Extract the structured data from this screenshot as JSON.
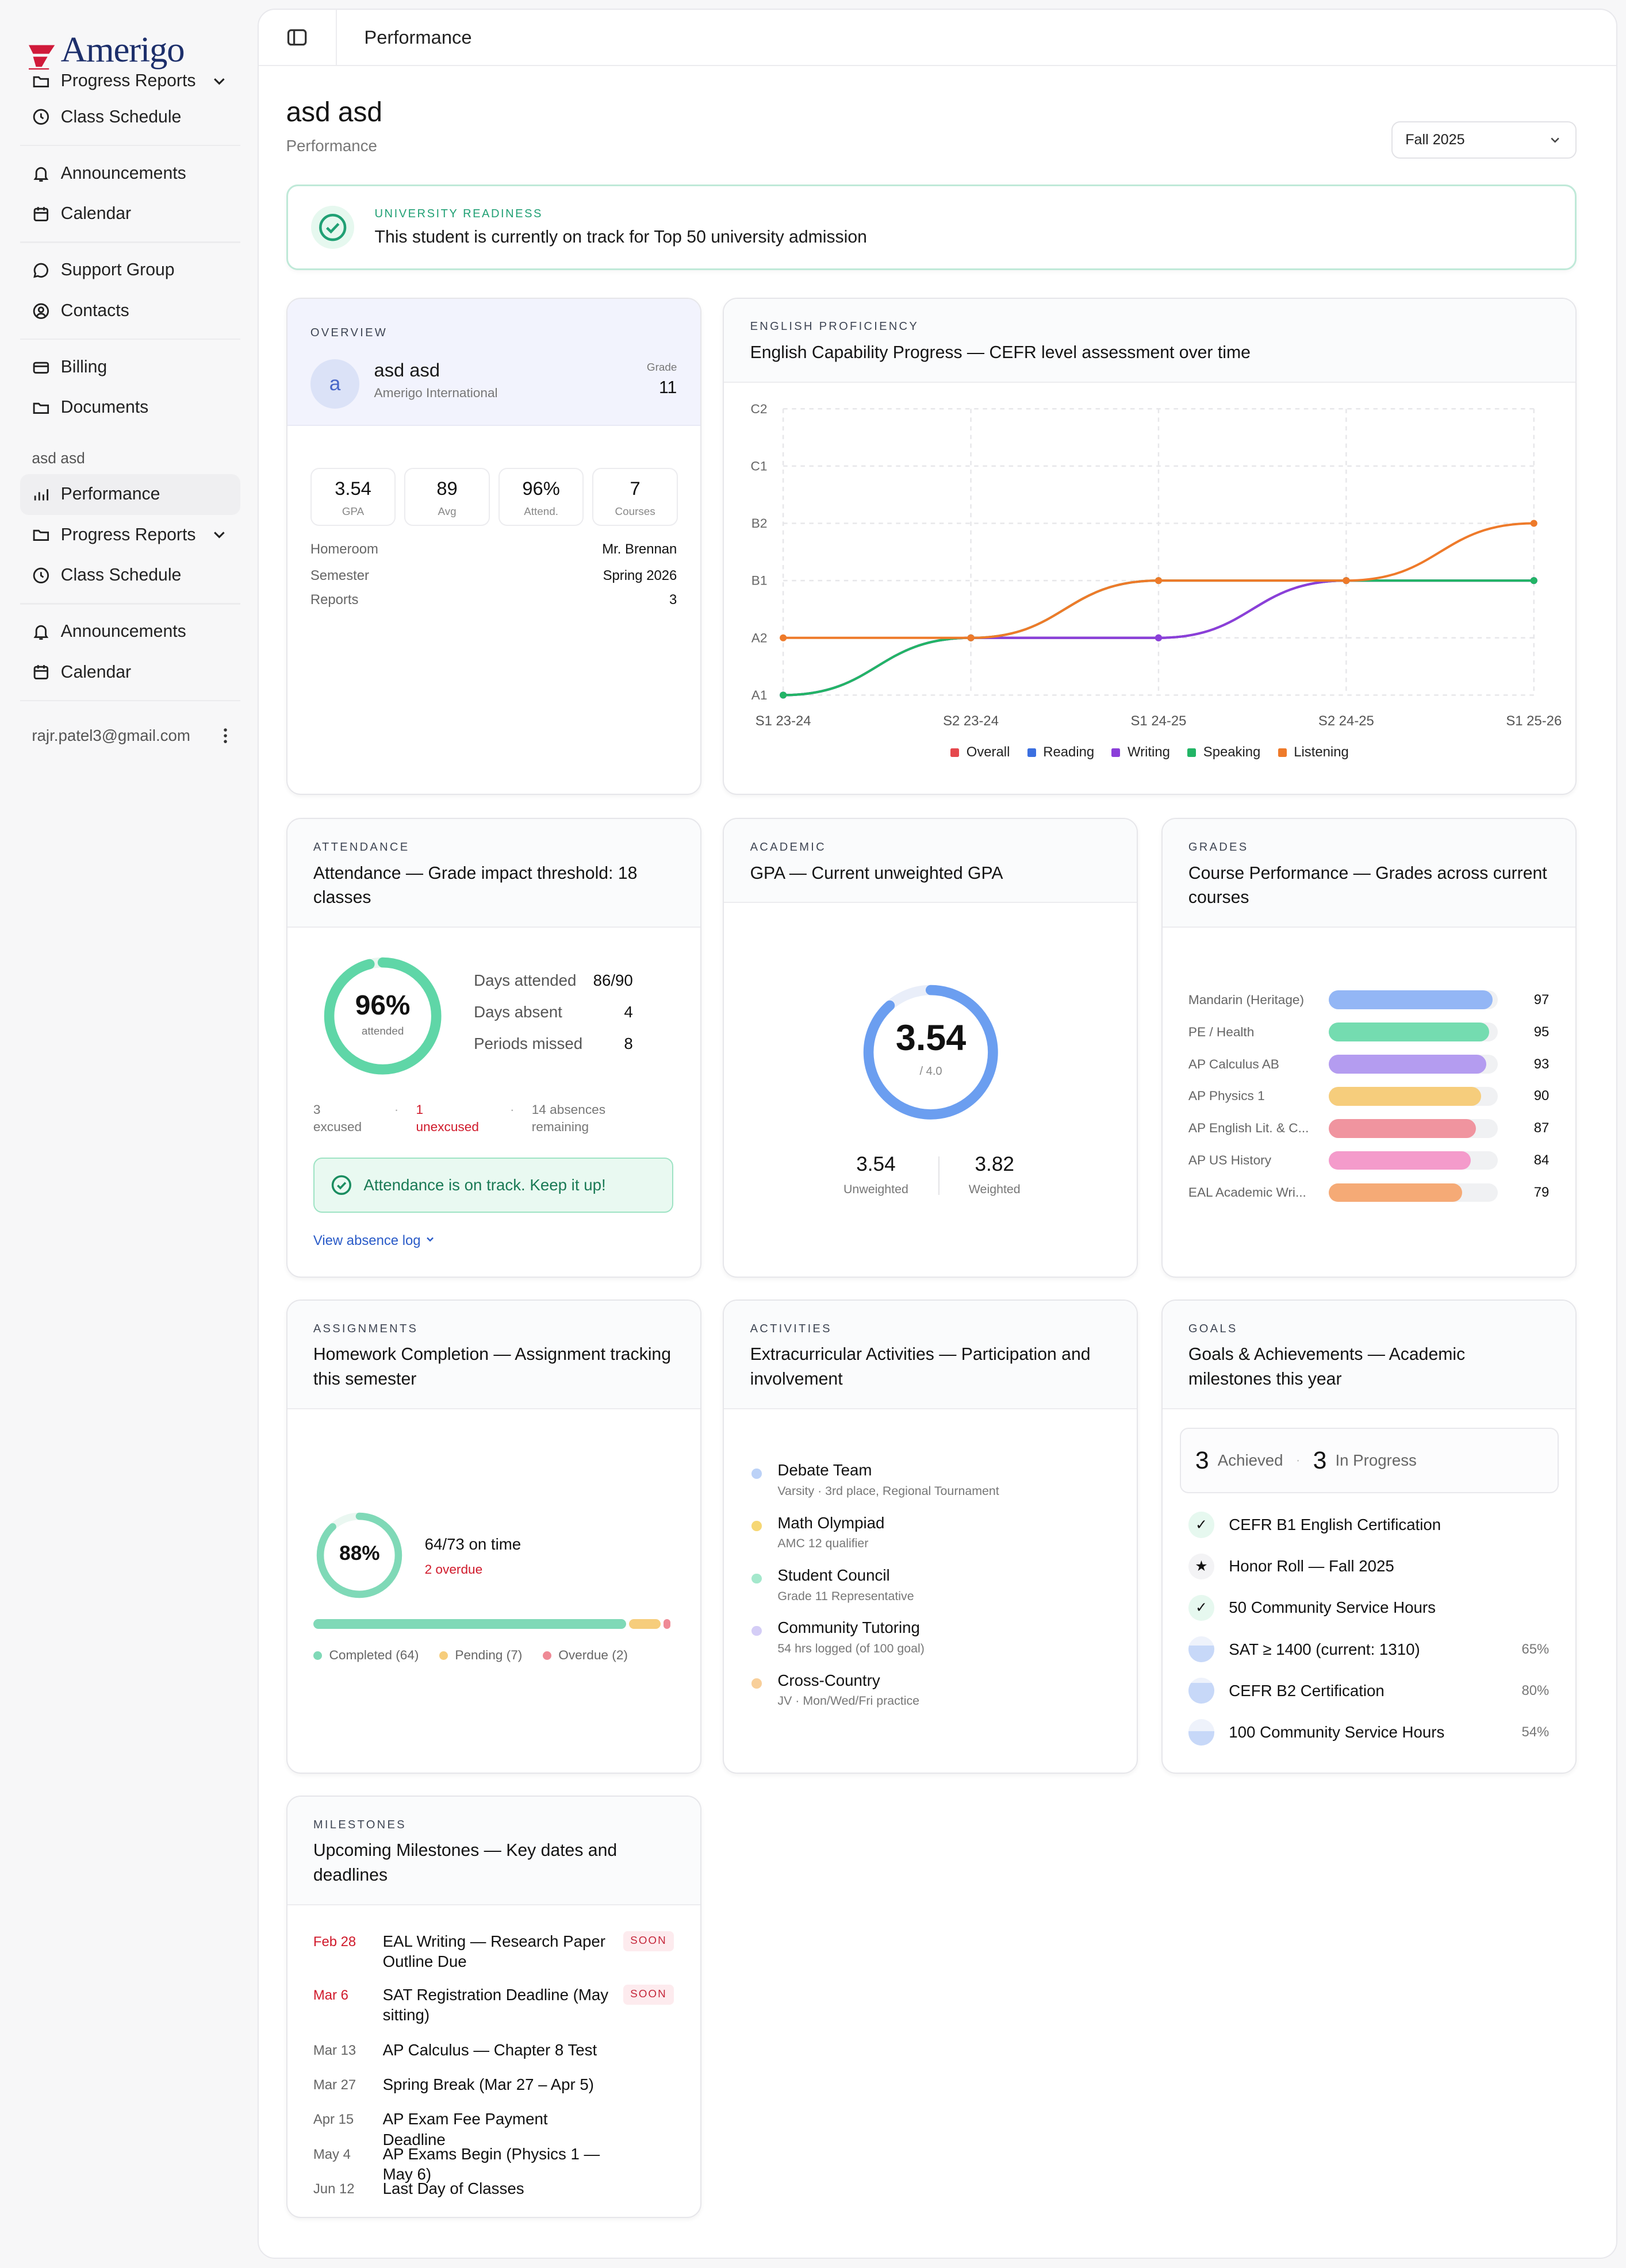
{
  "sidebar": {
    "brand": "Amerigo",
    "top_items": [
      {
        "label": "Progress Reports",
        "icon": "folder-icon"
      },
      {
        "label": "Class Schedule",
        "icon": "clock-icon"
      }
    ],
    "group1": [
      {
        "label": "Announcements",
        "icon": "bell-icon"
      },
      {
        "label": "Calendar",
        "icon": "calendar-icon"
      }
    ],
    "group2": [
      {
        "label": "Support Group",
        "icon": "chat-icon"
      },
      {
        "label": "Contacts",
        "icon": "contact-icon"
      }
    ],
    "group3": [
      {
        "label": "Billing",
        "icon": "billing-icon"
      },
      {
        "label": "Documents",
        "icon": "folder-icon"
      }
    ],
    "student_section": "asd asd",
    "student_items": [
      {
        "label": "Performance",
        "icon": "chart-icon"
      },
      {
        "label": "Progress Reports",
        "icon": "folder-icon"
      },
      {
        "label": "Class Schedule",
        "icon": "clock-icon"
      }
    ],
    "group4": [
      {
        "label": "Announcements",
        "icon": "bell-icon"
      },
      {
        "label": "Calendar",
        "icon": "calendar-icon"
      }
    ],
    "user_email": "rajr.patel3@gmail.com"
  },
  "topbar": {
    "title": "Performance"
  },
  "page": {
    "title": "asd asd",
    "subtitle": "Performance",
    "term": "Fall 2025"
  },
  "banner": {
    "eyebrow": "UNIVERSITY READINESS",
    "message": "This student is currently on track for Top 50 university admission"
  },
  "overview": {
    "eyebrow": "OVERVIEW",
    "avatar": "a",
    "name": "asd asd",
    "school": "Amerigo International",
    "grade_label": "Grade",
    "grade": "11",
    "stats": [
      {
        "value": "3.54",
        "label": "GPA"
      },
      {
        "value": "89",
        "label": "Avg"
      },
      {
        "value": "96%",
        "label": "Attend."
      },
      {
        "value": "7",
        "label": "Courses"
      }
    ],
    "details": [
      {
        "key": "Homeroom",
        "value": "Mr. Brennan"
      },
      {
        "key": "Semester",
        "value": "Spring 2026"
      },
      {
        "key": "Reports",
        "value": "3"
      }
    ]
  },
  "english": {
    "eyebrow": "ENGLISH PROFICIENCY",
    "title": "English Capability Progress — CEFR level assessment over time",
    "chart_data": {
      "type": "line",
      "x": [
        "S1 23-24",
        "S2 23-24",
        "S1 24-25",
        "S2 24-25",
        "S1 25-26"
      ],
      "y_levels": [
        "A1",
        "A2",
        "B1",
        "B2",
        "C1",
        "C2"
      ],
      "series": [
        {
          "name": "Overall",
          "color": "#e5484d",
          "values": [
            "A1",
            "A2",
            "A2",
            "B1",
            "B1"
          ]
        },
        {
          "name": "Reading",
          "color": "#3b6fe0",
          "values": [
            "A1",
            "A2",
            "A2",
            "B1",
            "B1"
          ]
        },
        {
          "name": "Writing",
          "color": "#8b3fd9",
          "values": [
            "A1",
            "A2",
            "A2",
            "B1",
            "B1"
          ]
        },
        {
          "name": "Speaking",
          "color": "#22b566",
          "values": [
            "A1",
            "A2",
            "B1",
            "B1",
            "B1"
          ]
        },
        {
          "name": "Listening",
          "color": "#ee7a2a",
          "values": [
            "A2",
            "A2",
            "B1",
            "B1",
            "B2"
          ]
        }
      ],
      "grid": true,
      "legend": "bottom"
    }
  },
  "attendance": {
    "eyebrow": "ATTENDANCE",
    "title": "Attendance — Grade impact threshold: 18 classes",
    "percent": "96%",
    "percent_value": 96,
    "percent_label": "attended",
    "stats": [
      {
        "key": "Days attended",
        "value": "86/90"
      },
      {
        "key": "Days absent",
        "value": "4"
      },
      {
        "key": "Periods missed",
        "value": "8"
      }
    ],
    "excused_n": "3",
    "excused_l": "excused",
    "unexcused_n": "1",
    "unexcused_l": "unexcused",
    "remaining_n": "14 absences",
    "remaining_l": "remaining",
    "ok_message": "Attendance is on track. Keep it up!",
    "link": "View absence log"
  },
  "gpa": {
    "eyebrow": "ACADEMIC",
    "title": "GPA — Current unweighted GPA",
    "value": "3.54",
    "value_num": 3.54,
    "scale": "/ 4.0",
    "unweighted": "3.54",
    "unweighted_label": "Unweighted",
    "weighted": "3.82",
    "weighted_label": "Weighted"
  },
  "grades": {
    "eyebrow": "GRADES",
    "title": "Course Performance — Grades across current courses",
    "chart_data": {
      "type": "bar",
      "categories": [
        "Mandarin (Heritage)",
        "PE / Health",
        "AP Calculus AB",
        "AP Physics 1",
        "AP English Lit. & C...",
        "AP US History",
        "EAL Academic Wri..."
      ],
      "values": [
        97,
        95,
        93,
        90,
        87,
        84,
        79
      ],
      "colors": [
        "#93b6f5",
        "#74dcb0",
        "#b49cf0",
        "#f6cd7c",
        "#f0949f",
        "#f49bcb",
        "#f5aa76"
      ],
      "ylim": [
        0,
        100
      ]
    }
  },
  "homework": {
    "eyebrow": "ASSIGNMENTS",
    "title": "Homework Completion — Assignment tracking this semester",
    "percent": "88%",
    "percent_value": 88,
    "on_time": "64/73 on time",
    "overdue": "2 overdue",
    "segments": [
      {
        "label": "Completed (64)",
        "count": 64,
        "color": "#7fd9b7"
      },
      {
        "label": "Pending (7)",
        "count": 7,
        "color": "#f6cd7c"
      },
      {
        "label": "Overdue (2)",
        "count": 2,
        "color": "#ef8a96"
      }
    ]
  },
  "activities": {
    "eyebrow": "ACTIVITIES",
    "title": "Extracurricular Activities — Participation and involvement",
    "items": [
      {
        "title": "Debate Team",
        "sub": "Varsity · 3rd place, Regional Tournament",
        "color": "#bcd2f7"
      },
      {
        "title": "Math Olympiad",
        "sub": "AMC 12 qualifier",
        "color": "#f6d774"
      },
      {
        "title": "Student Council",
        "sub": "Grade 11 Representative",
        "color": "#a4e8cc"
      },
      {
        "title": "Community Tutoring",
        "sub": "54 hrs logged (of 100 goal)",
        "color": "#d4cdf6"
      },
      {
        "title": "Cross-Country",
        "sub": "JV · Mon/Wed/Fri practice",
        "color": "#f8cf9a"
      }
    ]
  },
  "goals": {
    "eyebrow": "GOALS",
    "title": "Goals & Achievements — Academic milestones this year",
    "achieved": "3",
    "achieved_label": "Achieved",
    "in_progress": "3",
    "in_progress_label": "In Progress",
    "items": [
      {
        "title": "CEFR B1 English Certification",
        "icon": "check-icon",
        "glyph": "✓",
        "progress": ""
      },
      {
        "title": "Honor Roll — Fall 2025",
        "icon": "star-icon",
        "glyph": "★",
        "progress": ""
      },
      {
        "title": "50 Community Service Hours",
        "icon": "check-icon",
        "glyph": "✓",
        "progress": ""
      },
      {
        "title": "SAT ≥ 1400 (current: 1310)",
        "icon": "progress-icon",
        "glyph": "",
        "progress": "65%"
      },
      {
        "title": "CEFR B2 Certification",
        "icon": "progress-icon",
        "glyph": "",
        "progress": "80%"
      },
      {
        "title": "100 Community Service Hours",
        "icon": "progress-icon",
        "glyph": "",
        "progress": "54%"
      }
    ]
  },
  "milestones": {
    "eyebrow": "MILESTONES",
    "title": "Upcoming Milestones — Key dates and deadlines",
    "items": [
      {
        "date": "Feb 28",
        "title": "EAL Writing — Research Paper Outline Due",
        "badge": "SOON"
      },
      {
        "date": "Mar 6",
        "title": "SAT Registration Deadline (May sitting)",
        "badge": "SOON"
      },
      {
        "date": "Mar 13",
        "title": "AP Calculus — Chapter 8 Test",
        "badge": ""
      },
      {
        "date": "Mar 27",
        "title": "Spring Break (Mar 27 – Apr 5)",
        "badge": ""
      },
      {
        "date": "Apr 15",
        "title": "AP Exam Fee Payment Deadline",
        "badge": ""
      },
      {
        "date": "May 4",
        "title": "AP Exams Begin (Physics 1 — May 6)",
        "badge": ""
      },
      {
        "date": "Jun 12",
        "title": "Last Day of Classes",
        "badge": ""
      }
    ]
  }
}
